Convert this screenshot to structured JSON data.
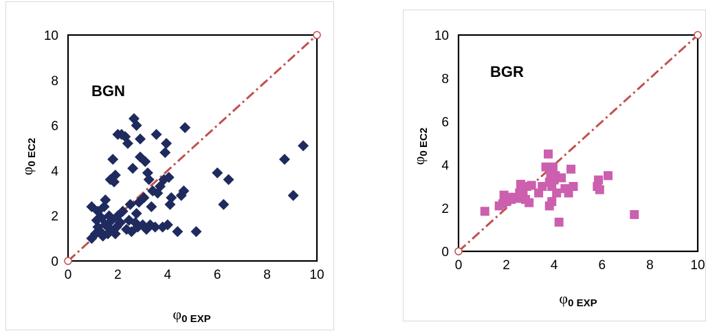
{
  "chart_data": [
    {
      "type": "scatter",
      "label": "BGN",
      "xlabel_main": "φ",
      "xlabel_sub": "0 EXP",
      "ylabel_main": "φ",
      "ylabel_sub": "0 EC2",
      "xlim": [
        0,
        10
      ],
      "ylim": [
        0,
        10
      ],
      "xticks": [
        "0",
        "2",
        "4",
        "6",
        "8",
        "10"
      ],
      "yticks": [
        "0",
        "2",
        "4",
        "6",
        "8",
        "10"
      ],
      "marker": "diamond",
      "color": "#1f2a5e",
      "reference_line": {
        "x": [
          0,
          10
        ],
        "y": [
          0,
          10
        ],
        "color": "#c0504d",
        "style": "dash-dot"
      },
      "points": [
        [
          0.95,
          1.0
        ],
        [
          0.95,
          2.4
        ],
        [
          1.1,
          1.2
        ],
        [
          1.15,
          1.8
        ],
        [
          1.2,
          1.5
        ],
        [
          1.2,
          2.2
        ],
        [
          1.3,
          1.3
        ],
        [
          1.35,
          1.9
        ],
        [
          1.4,
          1.1
        ],
        [
          1.45,
          2.4
        ],
        [
          1.5,
          1.6
        ],
        [
          1.5,
          2.7
        ],
        [
          1.6,
          1.2
        ],
        [
          1.65,
          2.0
        ],
        [
          1.7,
          1.4
        ],
        [
          1.7,
          3.6
        ],
        [
          1.75,
          1.8
        ],
        [
          1.8,
          4.5
        ],
        [
          1.85,
          3.5
        ],
        [
          1.9,
          1.2
        ],
        [
          1.9,
          3.8
        ],
        [
          1.95,
          1.5
        ],
        [
          2.0,
          2.0
        ],
        [
          2.0,
          5.6
        ],
        [
          2.1,
          1.7
        ],
        [
          2.15,
          5.6
        ],
        [
          2.2,
          2.2
        ],
        [
          2.3,
          5.5
        ],
        [
          2.35,
          1.4
        ],
        [
          2.4,
          5.2
        ],
        [
          2.45,
          1.8
        ],
        [
          2.5,
          2.5
        ],
        [
          2.55,
          1.3
        ],
        [
          2.6,
          4.1
        ],
        [
          2.65,
          6.3
        ],
        [
          2.7,
          1.7
        ],
        [
          2.75,
          6.0
        ],
        [
          2.75,
          2.1
        ],
        [
          2.8,
          1.5
        ],
        [
          2.85,
          2.6
        ],
        [
          2.9,
          4.6
        ],
        [
          2.9,
          5.4
        ],
        [
          3.0,
          1.6
        ],
        [
          3.05,
          2.8
        ],
        [
          3.1,
          4.4
        ],
        [
          3.15,
          1.4
        ],
        [
          3.2,
          3.9
        ],
        [
          3.25,
          3.6
        ],
        [
          3.3,
          1.6
        ],
        [
          3.35,
          2.4
        ],
        [
          3.4,
          3.1
        ],
        [
          3.5,
          1.5
        ],
        [
          3.55,
          5.6
        ],
        [
          3.6,
          3.0
        ],
        [
          3.7,
          3.3
        ],
        [
          3.8,
          1.5
        ],
        [
          3.85,
          3.6
        ],
        [
          3.9,
          4.8
        ],
        [
          3.95,
          5.2
        ],
        [
          4.0,
          1.6
        ],
        [
          4.05,
          3.7
        ],
        [
          4.1,
          2.5
        ],
        [
          4.15,
          2.8
        ],
        [
          4.4,
          1.3
        ],
        [
          4.55,
          2.9
        ],
        [
          4.65,
          3.1
        ],
        [
          4.7,
          5.9
        ],
        [
          5.15,
          1.3
        ],
        [
          6.0,
          3.9
        ],
        [
          6.25,
          2.5
        ],
        [
          6.45,
          3.6
        ],
        [
          8.7,
          4.5
        ],
        [
          9.05,
          2.9
        ],
        [
          9.45,
          5.1
        ]
      ]
    },
    {
      "type": "scatter",
      "label": "BGR",
      "xlabel_main": "φ",
      "xlabel_sub": "0 EXP",
      "ylabel_main": "φ",
      "ylabel_sub": "0 EC2",
      "xlim": [
        0,
        10
      ],
      "ylim": [
        0,
        10
      ],
      "xticks": [
        "0",
        "2",
        "4",
        "6",
        "8",
        "10"
      ],
      "yticks": [
        "0",
        "2",
        "4",
        "6",
        "8",
        "10"
      ],
      "marker": "square",
      "color": "#cc5fae",
      "reference_line": {
        "x": [
          0,
          10
        ],
        "y": [
          0,
          10
        ],
        "color": "#c0504d",
        "style": "dash-dot"
      },
      "points": [
        [
          1.1,
          1.85
        ],
        [
          1.7,
          2.1
        ],
        [
          1.85,
          2.2
        ],
        [
          1.9,
          2.6
        ],
        [
          2.0,
          2.3
        ],
        [
          2.1,
          2.5
        ],
        [
          2.2,
          2.4
        ],
        [
          2.35,
          2.5
        ],
        [
          2.45,
          2.45
        ],
        [
          2.55,
          2.7
        ],
        [
          2.6,
          3.1
        ],
        [
          2.7,
          2.8
        ],
        [
          2.8,
          2.4
        ],
        [
          2.85,
          3.0
        ],
        [
          2.95,
          2.25
        ],
        [
          3.05,
          3.05
        ],
        [
          3.35,
          2.7
        ],
        [
          3.5,
          3.0
        ],
        [
          3.65,
          3.9
        ],
        [
          3.75,
          4.5
        ],
        [
          3.8,
          3.2
        ],
        [
          3.85,
          3.6
        ],
        [
          3.9,
          3.0
        ],
        [
          3.95,
          3.9
        ],
        [
          4.0,
          3.3
        ],
        [
          4.05,
          3.5
        ],
        [
          4.1,
          2.7
        ],
        [
          4.2,
          1.35
        ],
        [
          4.3,
          3.4
        ],
        [
          4.45,
          2.9
        ],
        [
          4.6,
          2.7
        ],
        [
          4.7,
          3.8
        ],
        [
          4.8,
          3.0
        ],
        [
          5.8,
          3.0
        ],
        [
          5.85,
          3.3
        ],
        [
          5.9,
          2.85
        ],
        [
          6.25,
          3.5
        ],
        [
          7.35,
          1.7
        ],
        [
          3.8,
          2.1
        ],
        [
          3.9,
          2.3
        ]
      ]
    }
  ]
}
